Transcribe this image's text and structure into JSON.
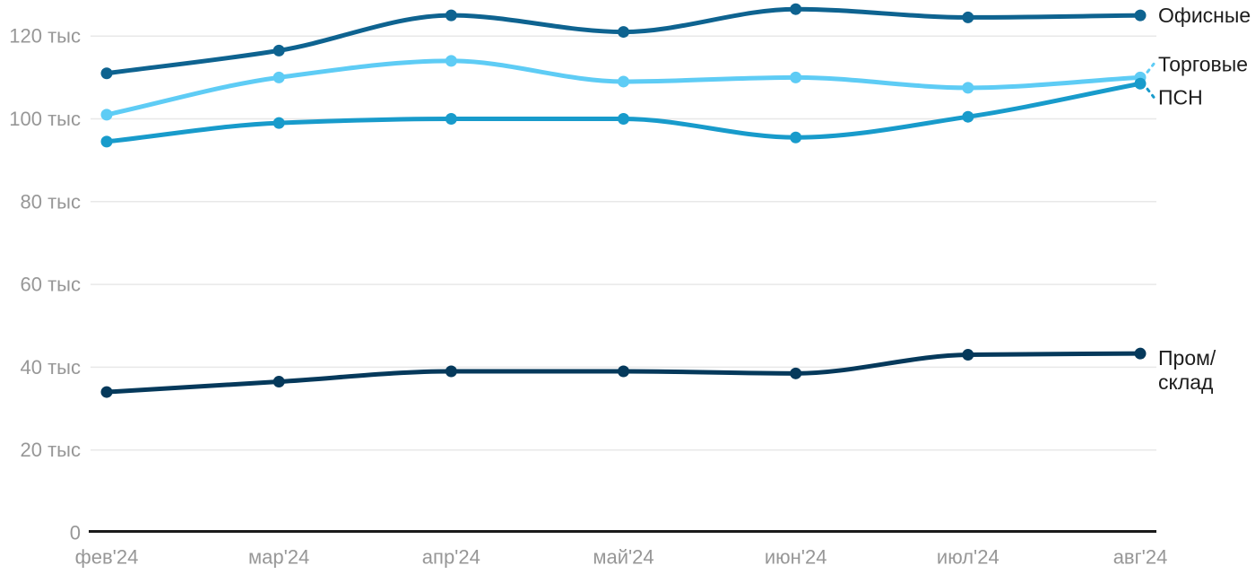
{
  "chart_data": {
    "type": "line",
    "title": "",
    "xlabel": "",
    "ylabel": "",
    "unit": "тыс",
    "x": [
      "фев'24",
      "мар'24",
      "апр'24",
      "май'24",
      "июн'24",
      "июл'24",
      "авг'24"
    ],
    "series": [
      {
        "id": "offices",
        "name": "Офисные",
        "color": "#0e6390",
        "values": [
          111,
          116.5,
          125,
          121,
          126.5,
          124.5,
          125
        ],
        "label_lines": [
          "Офисные"
        ],
        "label_dy": 0,
        "leader": false
      },
      {
        "id": "retail",
        "name": "Торговые",
        "color": "#5eccf5",
        "values": [
          101,
          110,
          114,
          109,
          110,
          107.5,
          110
        ],
        "label_lines": [
          "Торговые"
        ],
        "label_dy": -15,
        "leader": true
      },
      {
        "id": "psn",
        "name": "ПСН",
        "color": "#189bcb",
        "values": [
          94.5,
          99,
          100,
          100,
          95.5,
          100.5,
          108.5
        ],
        "label_lines": [
          "ПСН"
        ],
        "label_dy": 15,
        "leader": true
      },
      {
        "id": "industrial",
        "name": "Пром/склад",
        "color": "#05395b",
        "values": [
          34,
          36.5,
          39,
          39,
          38.5,
          43,
          43.3
        ],
        "label_lines": [
          "Пром/",
          "склад"
        ],
        "label_dy": 5,
        "leader": false
      }
    ],
    "yticks": [
      {
        "value": 0,
        "label": "0"
      },
      {
        "value": 20,
        "label": "20 тыс"
      },
      {
        "value": 40,
        "label": "40 тыс"
      },
      {
        "value": 60,
        "label": "60 тыс"
      },
      {
        "value": 80,
        "label": "80 тыс"
      },
      {
        "value": 100,
        "label": "100 тыс"
      },
      {
        "value": 120,
        "label": "120 тыс"
      }
    ],
    "ylim": [
      0,
      130
    ],
    "grid": true,
    "legend_position": "right-direct-labels"
  },
  "colors": {
    "background": "#ffffff",
    "gridline": "#e8e8e8",
    "axis": "#1a1a1a",
    "tick_text": "#979797",
    "label_text": "#1d1d1d"
  }
}
